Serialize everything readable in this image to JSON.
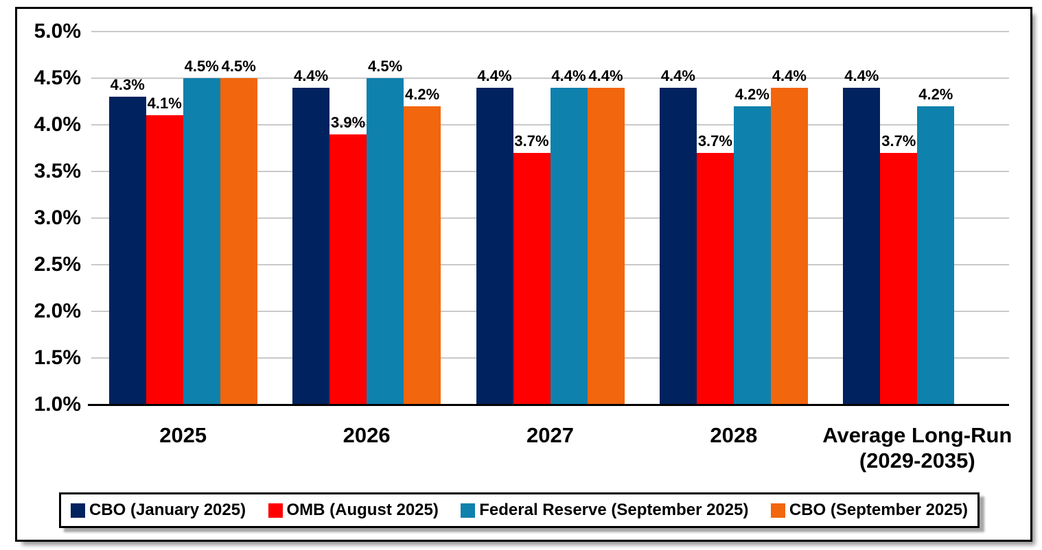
{
  "chart_data": {
    "type": "bar",
    "title": "",
    "categories": [
      {
        "lines": [
          "2025"
        ]
      },
      {
        "lines": [
          "2026"
        ]
      },
      {
        "lines": [
          "2027"
        ]
      },
      {
        "lines": [
          "2028"
        ]
      },
      {
        "lines": [
          "Average Long-Run",
          "(2029-2035)"
        ]
      }
    ],
    "series": [
      {
        "name": "CBO (January 2025)",
        "color": "#00225e",
        "values": [
          4.3,
          4.4,
          4.4,
          4.4,
          4.4
        ],
        "labels": [
          "4.3%",
          "4.4%",
          "4.4%",
          "4.4%",
          "4.4%"
        ]
      },
      {
        "name": "OMB (August 2025)",
        "color": "#fe0000",
        "values": [
          4.1,
          3.9,
          3.7,
          3.7,
          3.7
        ],
        "labels": [
          "4.1%",
          "3.9%",
          "3.7%",
          "3.7%",
          "3.7%"
        ]
      },
      {
        "name": "Federal Reserve (September 2025)",
        "color": "#0e81ad",
        "values": [
          4.5,
          4.5,
          4.4,
          4.2,
          4.2
        ],
        "labels": [
          "4.5%",
          "4.5%",
          "4.4%",
          "4.2%",
          "4.2%"
        ]
      },
      {
        "name": "CBO (September 2025)",
        "color": "#f2660d",
        "values": [
          4.5,
          4.2,
          4.4,
          4.4,
          null
        ],
        "labels": [
          "4.5%",
          "4.2%",
          "4.4%",
          "4.4%",
          null
        ]
      }
    ],
    "y_axis": {
      "min": 1.0,
      "max": 5.0,
      "step": 0.5,
      "tick_labels": [
        "1.0%",
        "1.5%",
        "2.0%",
        "2.5%",
        "3.0%",
        "3.5%",
        "4.0%",
        "4.5%",
        "5.0%"
      ]
    },
    "grid": true,
    "legend_position": "bottom"
  },
  "colors": {
    "gridline": "#c9c9c9",
    "axis_line": "#000000",
    "frame_border": "#000000",
    "background": "#ffffff"
  }
}
